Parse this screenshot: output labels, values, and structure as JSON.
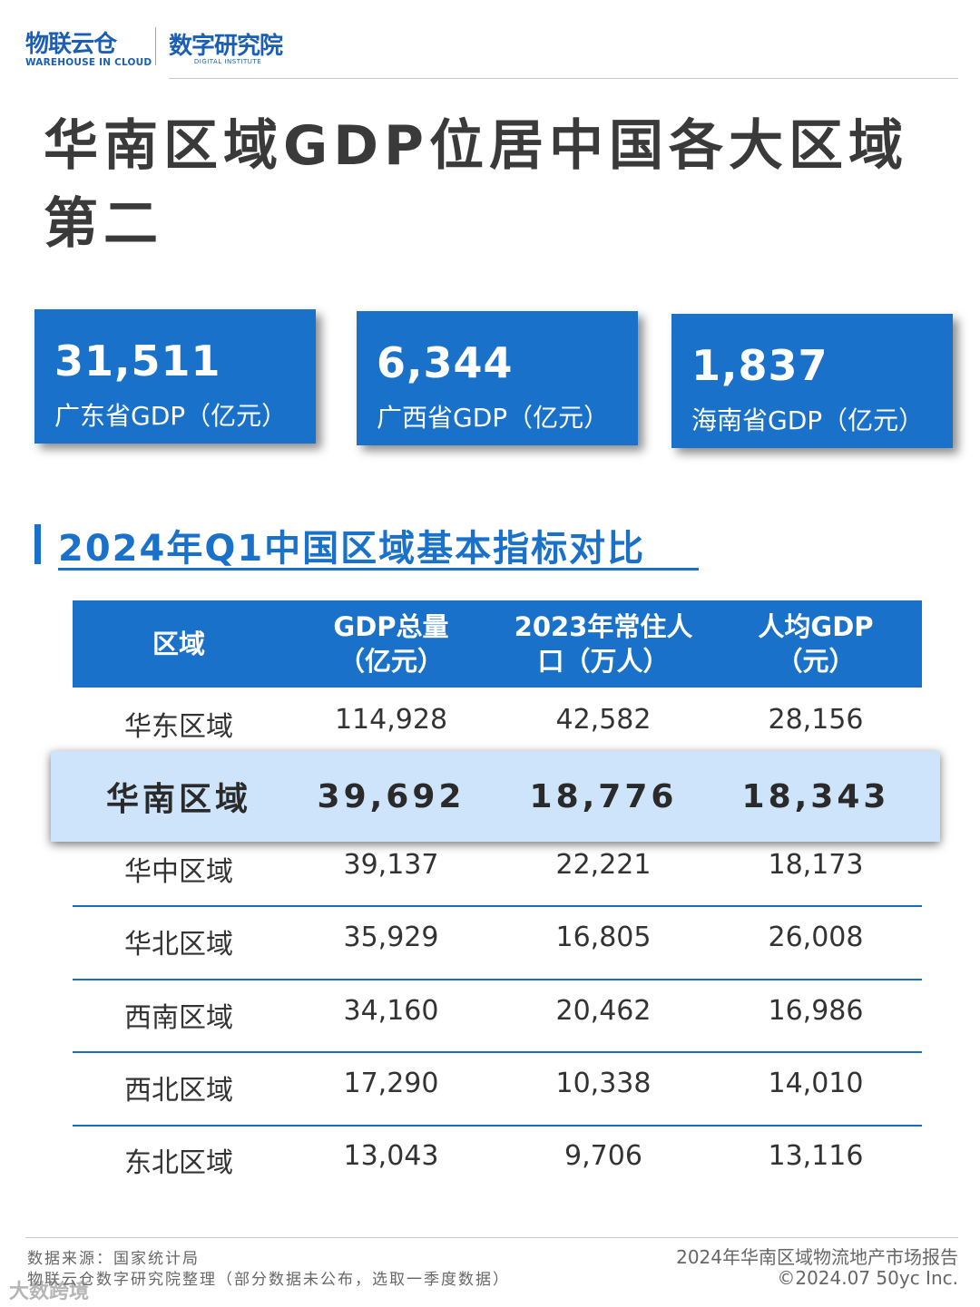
{
  "brand": {
    "name_cn": "物联云仓",
    "name_en": "WAREHOUSE IN CLOUD",
    "institute_cn": "数字研究院",
    "institute_en": "DIGITAL INSTITUTE",
    "accent": "#1971c9"
  },
  "headline": "华南区域GDP位居中国各大区域第二",
  "cards": [
    {
      "value": "31,511",
      "label": "广东省GDP（亿元）"
    },
    {
      "value": "6,344",
      "label": "广西省GDP（亿元）"
    },
    {
      "value": "1,837",
      "label": "海南省GDP（亿元）"
    }
  ],
  "section_title": "2024年Q1中国区域基本指标对比",
  "table": {
    "headers": [
      {
        "line1": "区域",
        "line2": ""
      },
      {
        "line1": "GDP总量",
        "line2": "（亿元）"
      },
      {
        "line1": "2023年常住人",
        "line2": "口（万人）"
      },
      {
        "line1": "人均GDP",
        "line2": "（元）"
      }
    ],
    "rows": [
      [
        "华东区域",
        "114,928",
        "42,582",
        "28,156"
      ],
      [
        "华南区域",
        "39,692",
        "18,776",
        "18,343"
      ],
      [
        "华中区域",
        "39,137",
        "22,221",
        "18,173"
      ],
      [
        "华北区域",
        "35,929",
        "16,805",
        "26,008"
      ],
      [
        "西南区域",
        "34,160",
        "20,462",
        "16,986"
      ],
      [
        "西北区域",
        "17,290",
        "10,338",
        "14,010"
      ],
      [
        "东北区域",
        "13,043",
        "9,706",
        "13,116"
      ]
    ],
    "highlight_color": "#cde4fb"
  },
  "footer": {
    "source": "数据来源：国家统计局",
    "note": "物联云仓数字研究院整理（部分数据未公布，选取一季度数据）",
    "report": "2024年华南区域物流地产市场报告",
    "copyright": "©2024.07 50yc Inc.",
    "watermark": "大数跨境"
  }
}
